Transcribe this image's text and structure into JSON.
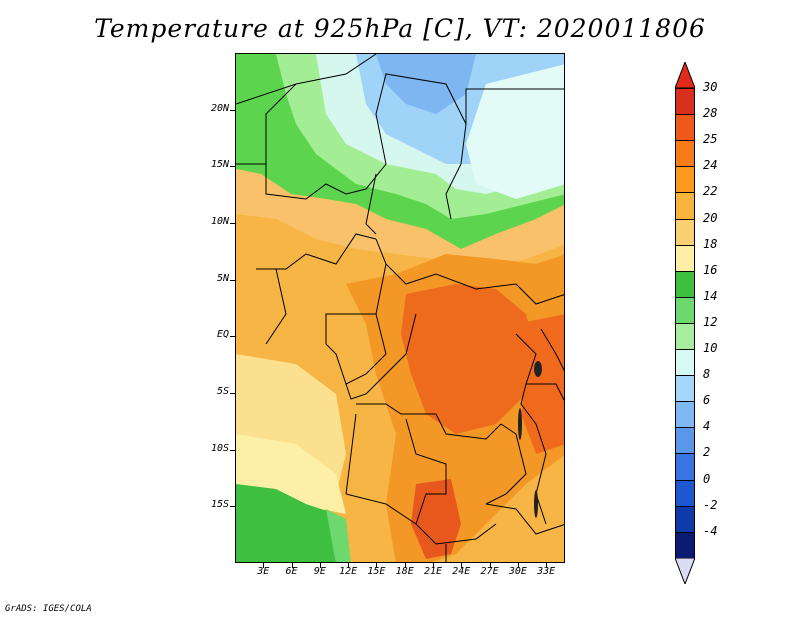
{
  "title": "Temperature at 925hPa [C], VT: 2020011806",
  "footer": "GrADS: IGES/COLA",
  "map": {
    "lat_labels": [
      "20N",
      "15N",
      "10N",
      "5N",
      "EQ",
      "5S",
      "10S",
      "15S"
    ],
    "lat_values": [
      20,
      15,
      10,
      5,
      0,
      -5,
      -10,
      -15
    ],
    "lon_labels": [
      "3E",
      "6E",
      "9E",
      "12E",
      "15E",
      "18E",
      "21E",
      "24E",
      "27E",
      "30E",
      "33E"
    ],
    "lon_values": [
      3,
      6,
      9,
      12,
      15,
      18,
      21,
      24,
      27,
      30,
      33
    ],
    "lon_range": [
      0,
      35
    ],
    "lat_range": [
      -20,
      25
    ]
  },
  "colorbar": {
    "levels": [
      "30",
      "28",
      "25",
      "24",
      "22",
      "20",
      "18",
      "16",
      "14",
      "12",
      "10",
      "8",
      "6",
      "4",
      "2",
      "0",
      "-2",
      "-4"
    ],
    "colors": [
      "#d7301f",
      "#ef5a1a",
      "#f57c18",
      "#f99a1f",
      "#f8b33c",
      "#fbd074",
      "#fdefa6",
      "#3fbf3f",
      "#6dd86d",
      "#a6ee9d",
      "#d6f9f1",
      "#a5d8f8",
      "#7fb8f3",
      "#5b96ea",
      "#3b73e0",
      "#1e58cf",
      "#0f3ba8",
      "#0b1b70"
    ],
    "top_color": "#e02a1a",
    "bottom_color": "#dcdcf4"
  }
}
